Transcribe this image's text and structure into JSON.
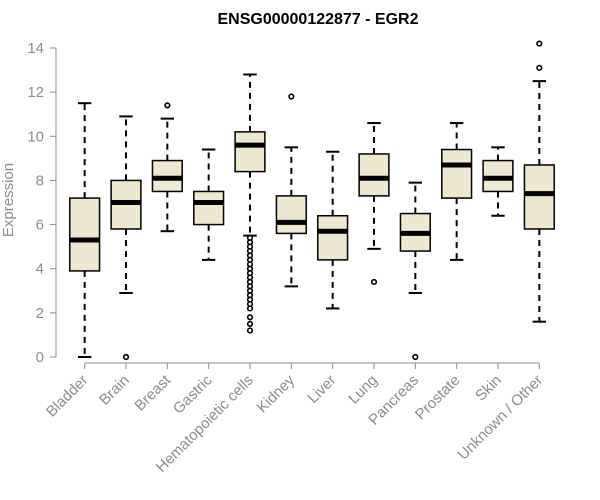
{
  "chart_data": {
    "type": "boxplot",
    "title": "ENSG00000122877 - EGR2",
    "xlabel": "",
    "ylabel": "Expression",
    "ylim": [
      0,
      14
    ],
    "yticks": [
      0,
      2,
      4,
      6,
      8,
      10,
      12,
      14
    ],
    "grid": false,
    "legend": "none",
    "colors": {
      "box_fill": "#efe8d0",
      "box_stroke": "#000000",
      "axis": "#8c8c8c"
    },
    "categories": [
      "Bladder",
      "Brain",
      "Breast",
      "Gastric",
      "Hematopoietic cells",
      "Kidney",
      "Liver",
      "Lung",
      "Pancreas",
      "Prostate",
      "Skin",
      "Unknown / Other"
    ],
    "boxes": [
      {
        "category": "Bladder",
        "whisker_low": 0.0,
        "q1": 3.9,
        "median": 5.3,
        "q3": 7.2,
        "whisker_high": 11.5,
        "outliers": []
      },
      {
        "category": "Brain",
        "whisker_low": 2.9,
        "q1": 5.8,
        "median": 7.0,
        "q3": 8.0,
        "whisker_high": 10.9,
        "outliers": [
          0.0
        ]
      },
      {
        "category": "Breast",
        "whisker_low": 5.7,
        "q1": 7.5,
        "median": 8.1,
        "q3": 8.9,
        "whisker_high": 10.8,
        "outliers": [
          11.4
        ]
      },
      {
        "category": "Gastric",
        "whisker_low": 4.4,
        "q1": 6.0,
        "median": 7.0,
        "q3": 7.5,
        "whisker_high": 9.4,
        "outliers": []
      },
      {
        "category": "Hematopoietic cells",
        "whisker_low": 5.5,
        "q1": 8.4,
        "median": 9.6,
        "q3": 10.2,
        "whisker_high": 12.8,
        "outliers": [
          5.4,
          5.2,
          5.0,
          4.8,
          4.6,
          4.4,
          4.2,
          4.0,
          3.8,
          3.6,
          3.4,
          3.2,
          3.0,
          2.8,
          2.6,
          2.4,
          2.2,
          1.8,
          1.5,
          1.2
        ]
      },
      {
        "category": "Kidney",
        "whisker_low": 3.2,
        "q1": 5.6,
        "median": 6.1,
        "q3": 7.3,
        "whisker_high": 9.5,
        "outliers": [
          11.8
        ]
      },
      {
        "category": "Liver",
        "whisker_low": 2.2,
        "q1": 4.4,
        "median": 5.7,
        "q3": 6.4,
        "whisker_high": 9.3,
        "outliers": []
      },
      {
        "category": "Lung",
        "whisker_low": 4.9,
        "q1": 7.3,
        "median": 8.1,
        "q3": 9.2,
        "whisker_high": 10.6,
        "outliers": [
          3.4
        ]
      },
      {
        "category": "Pancreas",
        "whisker_low": 2.9,
        "q1": 4.8,
        "median": 5.6,
        "q3": 6.5,
        "whisker_high": 7.9,
        "outliers": [
          0.0
        ]
      },
      {
        "category": "Prostate",
        "whisker_low": 4.4,
        "q1": 7.2,
        "median": 8.7,
        "q3": 9.4,
        "whisker_high": 10.6,
        "outliers": []
      },
      {
        "category": "Skin",
        "whisker_low": 6.4,
        "q1": 7.5,
        "median": 8.1,
        "q3": 8.9,
        "whisker_high": 9.5,
        "outliers": []
      },
      {
        "category": "Unknown / Other",
        "whisker_low": 1.6,
        "q1": 5.8,
        "median": 7.4,
        "q3": 8.7,
        "whisker_high": 12.5,
        "outliers": [
          13.1,
          14.2
        ]
      }
    ]
  }
}
